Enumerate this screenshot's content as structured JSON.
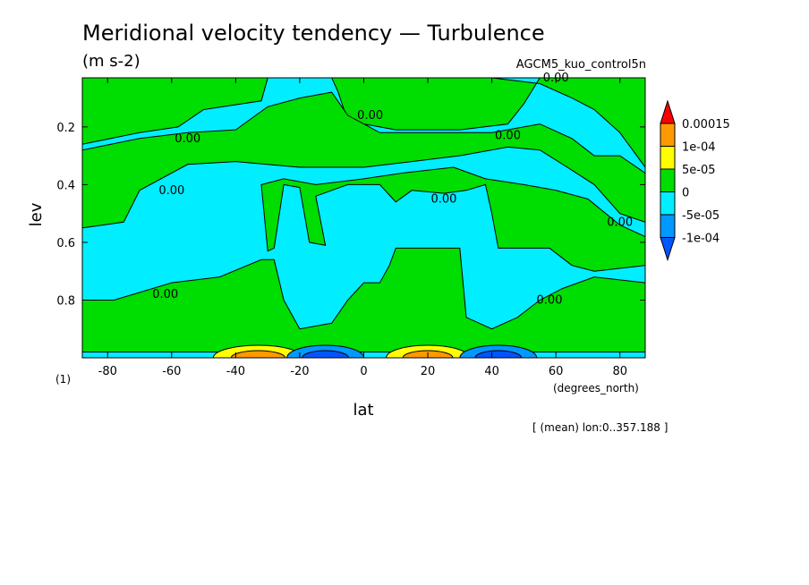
{
  "chart_data": {
    "type": "contour",
    "title": "Meridional velocity tendency — Turbulence",
    "units": "(m s-2)",
    "dataset": "AGCM5_kuo_control5n",
    "xlabel": "lat",
    "x_units": "(degrees_north)",
    "ylabel": "lev",
    "y_units": "(1)",
    "xlim": [
      -87.9,
      87.9
    ],
    "ylim": [
      1.0,
      0.03
    ],
    "x_ticks": [
      -80,
      -60,
      -40,
      -20,
      0,
      20,
      40,
      60,
      80
    ],
    "y_ticks": [
      0.2,
      0.4,
      0.6,
      0.8
    ],
    "footer": "[ (mean) lon:0..357.188 ]",
    "contour_label": "0.00",
    "colorbar": {
      "levels": [
        "0.00015",
        "1e-04",
        "5e-05",
        "0",
        "-5e-05",
        "-1e-04"
      ],
      "colors": [
        "#ff0000",
        "#ff9900",
        "#ffff00",
        "#00dd00",
        "#00eeff",
        "#0099ff",
        "#0055ff"
      ]
    },
    "fill_colors": {
      "positive_small": "#00dd00",
      "negative_small": "#00eeff",
      "negative_mid": "#0099ff",
      "negative_large": "#0055ff",
      "positive_mid": "#ffff00",
      "positive_large": "#ff9900"
    },
    "zero_label_positions": [
      {
        "lat": 2,
        "lev": 0.16
      },
      {
        "lat": -55,
        "lev": 0.24
      },
      {
        "lat": 45,
        "lev": 0.23
      },
      {
        "lat": -60,
        "lev": 0.42
      },
      {
        "lat": 25,
        "lev": 0.45
      },
      {
        "lat": 80,
        "lev": 0.53
      },
      {
        "lat": -62,
        "lev": 0.78
      },
      {
        "lat": 58,
        "lev": 0.8
      },
      {
        "lat": 60,
        "lev": 0.03
      }
    ],
    "green_regions": [
      [
        [
          -87.9,
          0.03
        ],
        [
          -30,
          0.03
        ],
        [
          -32,
          0.11
        ],
        [
          -50,
          0.14
        ],
        [
          -58,
          0.2
        ],
        [
          -70,
          0.22
        ],
        [
          -87.9,
          0.26
        ]
      ],
      [
        [
          -10,
          0.03
        ],
        [
          40,
          0.03
        ],
        [
          55,
          0.05
        ],
        [
          65,
          0.1
        ],
        [
          72,
          0.14
        ],
        [
          80,
          0.22
        ],
        [
          87.9,
          0.34
        ],
        [
          87.9,
          0.03
        ],
        [
          55,
          0.03
        ],
        [
          50,
          0.12
        ],
        [
          45,
          0.19
        ],
        [
          30,
          0.21
        ],
        [
          10,
          0.21
        ],
        [
          -5,
          0.18
        ],
        [
          -8,
          0.08
        ]
      ],
      [
        [
          -87.9,
          0.28
        ],
        [
          -70,
          0.24
        ],
        [
          -55,
          0.22
        ],
        [
          -40,
          0.21
        ],
        [
          -30,
          0.13
        ],
        [
          -20,
          0.1
        ],
        [
          -10,
          0.08
        ],
        [
          -5,
          0.16
        ],
        [
          5,
          0.22
        ],
        [
          25,
          0.22
        ],
        [
          40,
          0.22
        ],
        [
          55,
          0.19
        ],
        [
          65,
          0.24
        ],
        [
          72,
          0.3
        ],
        [
          80,
          0.3
        ],
        [
          87.9,
          0.36
        ],
        [
          87.9,
          0.53
        ],
        [
          80,
          0.5
        ],
        [
          72,
          0.4
        ],
        [
          65,
          0.35
        ],
        [
          55,
          0.28
        ],
        [
          45,
          0.27
        ],
        [
          30,
          0.3
        ],
        [
          15,
          0.32
        ],
        [
          0,
          0.34
        ],
        [
          -20,
          0.34
        ],
        [
          -40,
          0.32
        ],
        [
          -55,
          0.33
        ],
        [
          -70,
          0.42
        ],
        [
          -75,
          0.53
        ],
        [
          -87.9,
          0.55
        ]
      ],
      [
        [
          -28,
          0.62
        ],
        [
          -25,
          0.4
        ],
        [
          -20,
          0.41
        ],
        [
          -17,
          0.6
        ],
        [
          -12,
          0.61
        ],
        [
          -15,
          0.44
        ],
        [
          -5,
          0.4
        ],
        [
          5,
          0.4
        ],
        [
          10,
          0.46
        ],
        [
          15,
          0.42
        ],
        [
          25,
          0.43
        ],
        [
          32,
          0.42
        ],
        [
          38,
          0.4
        ],
        [
          40,
          0.5
        ],
        [
          42,
          0.62
        ],
        [
          58,
          0.62
        ],
        [
          65,
          0.68
        ],
        [
          72,
          0.7
        ],
        [
          87.9,
          0.68
        ],
        [
          87.9,
          0.58
        ],
        [
          80,
          0.54
        ],
        [
          70,
          0.45
        ],
        [
          60,
          0.42
        ],
        [
          50,
          0.4
        ],
        [
          38,
          0.38
        ],
        [
          28,
          0.34
        ],
        [
          12,
          0.36
        ],
        [
          0,
          0.38
        ],
        [
          -15,
          0.4
        ],
        [
          -25,
          0.38
        ],
        [
          -32,
          0.4
        ],
        [
          -30,
          0.63
        ]
      ],
      [
        [
          -87.9,
          0.8
        ],
        [
          -78,
          0.8
        ],
        [
          -60,
          0.74
        ],
        [
          -45,
          0.72
        ],
        [
          -32,
          0.66
        ],
        [
          -28,
          0.66
        ],
        [
          -25,
          0.8
        ],
        [
          -20,
          0.9
        ],
        [
          -10,
          0.88
        ],
        [
          -5,
          0.8
        ],
        [
          0,
          0.74
        ],
        [
          5,
          0.74
        ],
        [
          8,
          0.68
        ],
        [
          10,
          0.62
        ],
        [
          30,
          0.62
        ],
        [
          32,
          0.86
        ],
        [
          40,
          0.9
        ],
        [
          48,
          0.86
        ],
        [
          55,
          0.8
        ],
        [
          62,
          0.76
        ],
        [
          72,
          0.72
        ],
        [
          87.9,
          0.74
        ],
        [
          87.9,
          0.98
        ],
        [
          55,
          0.98
        ],
        [
          40,
          0.98
        ],
        [
          20,
          0.98
        ],
        [
          0,
          0.98
        ],
        [
          -20,
          0.98
        ],
        [
          -40,
          0.98
        ],
        [
          -60,
          0.98
        ],
        [
          -87.9,
          0.98
        ]
      ]
    ]
  }
}
